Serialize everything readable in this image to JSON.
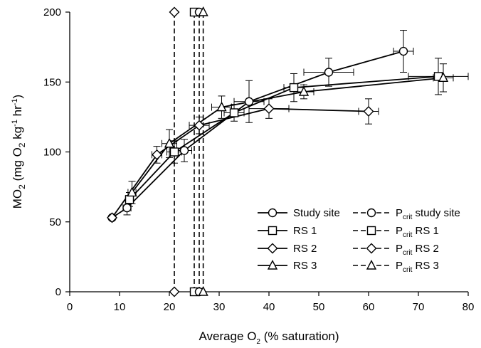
{
  "chart_data": {
    "type": "scatter",
    "xlabel_main": "Average O",
    "xlabel_sub": "2",
    "xlabel_tail": " (% saturation)",
    "ylabel_main": "MO",
    "ylabel_sub": "2",
    "ylabel_mid": " (mg O",
    "ylabel_sub2": "2",
    "ylabel_unit1": " kg",
    "ylabel_sup1": "-1",
    "ylabel_unit2": " hr",
    "ylabel_sup2": "-1",
    "ylabel_end": ")",
    "xlim": [
      0,
      80
    ],
    "ylim": [
      0,
      200
    ],
    "xticks": [
      0,
      10,
      20,
      30,
      40,
      50,
      60,
      70,
      80
    ],
    "yticks": [
      0,
      50,
      100,
      150,
      200
    ],
    "grid": false,
    "legend_position": "bottom-right",
    "series": [
      {
        "name": "Study site",
        "marker": "circle",
        "points": [
          {
            "x": 8.5,
            "y": 53,
            "xerr": 0,
            "yerr": 0
          },
          {
            "x": 11.5,
            "y": 60,
            "xerr": 0.8,
            "yerr": 5
          },
          {
            "x": 23,
            "y": 101,
            "xerr": 1.5,
            "yerr": 8
          },
          {
            "x": 36,
            "y": 136,
            "xerr": 3,
            "yerr": 15
          },
          {
            "x": 52,
            "y": 157,
            "xerr": 5,
            "yerr": 10
          },
          {
            "x": 67,
            "y": 172,
            "xerr": 2,
            "yerr": 15
          }
        ]
      },
      {
        "name": "RS 1",
        "marker": "square",
        "points": [
          {
            "x": 12,
            "y": 66,
            "xerr": 0.8,
            "yerr": 5
          },
          {
            "x": 21,
            "y": 100,
            "xerr": 1.5,
            "yerr": 8
          },
          {
            "x": 33,
            "y": 128,
            "xerr": 2,
            "yerr": 6
          },
          {
            "x": 45,
            "y": 146,
            "xerr": 2,
            "yerr": 10
          },
          {
            "x": 74,
            "y": 154,
            "xerr": 6,
            "yerr": 13
          }
        ]
      },
      {
        "name": "RS 2",
        "marker": "diamond",
        "points": [
          {
            "x": 8.5,
            "y": 53,
            "xerr": 0,
            "yerr": 0
          },
          {
            "x": 17.5,
            "y": 98,
            "xerr": 1,
            "yerr": 6
          },
          {
            "x": 26,
            "y": 119,
            "xerr": 2,
            "yerr": 6
          },
          {
            "x": 40,
            "y": 131,
            "xerr": 4,
            "yerr": 7
          },
          {
            "x": 60,
            "y": 129,
            "xerr": 2,
            "yerr": 9
          }
        ]
      },
      {
        "name": "RS 3",
        "marker": "triangle",
        "points": [
          {
            "x": 12.5,
            "y": 71,
            "xerr": 0.8,
            "yerr": 8
          },
          {
            "x": 20,
            "y": 106,
            "xerr": 1.5,
            "yerr": 10
          },
          {
            "x": 30.5,
            "y": 132,
            "xerr": 2,
            "yerr": 8
          },
          {
            "x": 47,
            "y": 143,
            "xerr": 2,
            "yerr": 5
          },
          {
            "x": 75,
            "y": 153,
            "xerr": 2,
            "yerr": 10
          }
        ]
      }
    ],
    "pcrit": [
      {
        "x": 21,
        "marker": "diamond"
      },
      {
        "x": 25,
        "marker": "square"
      },
      {
        "x": 26,
        "marker": "circle"
      },
      {
        "x": 26.8,
        "marker": "triangle"
      }
    ],
    "legend": {
      "left": [
        {
          "label": "Study site",
          "marker": "circle",
          "style": "solid"
        },
        {
          "label": "RS 1",
          "marker": "square",
          "style": "solid"
        },
        {
          "label": "RS 2",
          "marker": "diamond",
          "style": "solid"
        },
        {
          "label": "RS 3",
          "marker": "triangle",
          "style": "solid"
        }
      ],
      "right": [
        {
          "label_main": "P",
          "label_sub": "crit",
          "label_tail": " study site",
          "marker": "circle",
          "style": "dashed"
        },
        {
          "label_main": "P",
          "label_sub": "crit",
          "label_tail": " RS 1",
          "marker": "square",
          "style": "dashed"
        },
        {
          "label_main": "P",
          "label_sub": "crit",
          "label_tail": " RS 2",
          "marker": "diamond",
          "style": "dashed"
        },
        {
          "label_main": "P",
          "label_sub": "crit",
          "label_tail": " RS 3",
          "marker": "triangle",
          "style": "dashed"
        }
      ]
    }
  }
}
